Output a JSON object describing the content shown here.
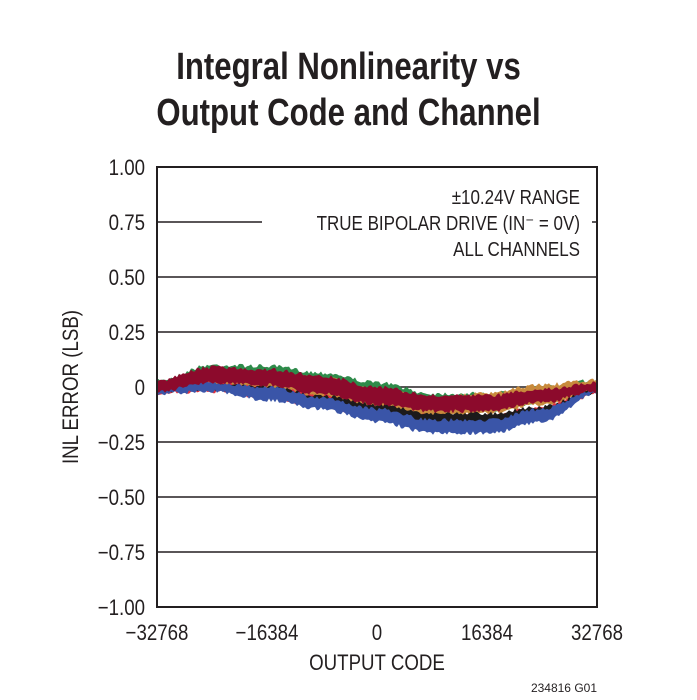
{
  "chart_data": {
    "type": "area",
    "title_line1": "Integral Nonlinearity vs",
    "title_line2": "Output Code and Channel",
    "xlabel": "OUTPUT CODE",
    "ylabel": "INL ERROR (LSB)",
    "xlim": [
      -32768,
      32768
    ],
    "ylim": [
      -1.0,
      1.0
    ],
    "xticks": [
      "−32768",
      "−16384",
      "0",
      "16384",
      "32768"
    ],
    "xtick_values": [
      -32768,
      -16384,
      0,
      16384,
      32768
    ],
    "yticks": [
      "1.00",
      "0.75",
      "0.50",
      "0.25",
      "0",
      "−0.25",
      "−0.50",
      "−0.75",
      "−1.00"
    ],
    "ytick_values": [
      1.0,
      0.75,
      0.5,
      0.25,
      0,
      -0.25,
      -0.5,
      -0.75,
      -1.0
    ],
    "grid": true,
    "annotations": [
      "±10.24V RANGE",
      "TRUE BIPOLAR DRIVE (IN⁻ = 0V)",
      "ALL CHANNELS"
    ],
    "figure_id": "234816 G01",
    "x": [
      -32768,
      -24576,
      -16384,
      -8192,
      0,
      8192,
      16384,
      24576,
      32768
    ],
    "series": [
      {
        "color": "#2e8b4a",
        "upper": [
          0.03,
          0.1,
          0.095,
          0.065,
          0.02,
          -0.03,
          -0.03,
          0.0,
          0.03
        ],
        "lower": [
          -0.02,
          0.02,
          0.01,
          -0.03,
          -0.08,
          -0.11,
          -0.11,
          -0.07,
          -0.02
        ]
      },
      {
        "color": "#c88a3c",
        "upper": [
          0.02,
          0.08,
          0.07,
          0.04,
          -0.01,
          -0.05,
          -0.03,
          0.01,
          0.03
        ],
        "lower": [
          -0.02,
          0.0,
          -0.01,
          -0.05,
          -0.1,
          -0.13,
          -0.12,
          -0.08,
          -0.02
        ]
      },
      {
        "color": "#e0303f",
        "upper": [
          0.0,
          0.02,
          0.0,
          -0.04,
          -0.09,
          -0.13,
          -0.13,
          -0.09,
          -0.01
        ],
        "lower": [
          -0.03,
          -0.02,
          -0.05,
          -0.09,
          -0.15,
          -0.19,
          -0.18,
          -0.14,
          -0.03
        ]
      },
      {
        "color": "#1c1a1b",
        "upper": [
          0.0,
          0.01,
          0.0,
          -0.04,
          -0.08,
          -0.12,
          -0.12,
          -0.09,
          -0.01
        ],
        "lower": [
          -0.02,
          -0.01,
          -0.04,
          -0.08,
          -0.13,
          -0.16,
          -0.16,
          -0.12,
          -0.03
        ]
      },
      {
        "color": "#3a55a8",
        "upper": [
          0.01,
          0.02,
          0.0,
          -0.05,
          -0.1,
          -0.15,
          -0.15,
          -0.1,
          -0.01
        ],
        "lower": [
          -0.03,
          -0.02,
          -0.06,
          -0.1,
          -0.16,
          -0.21,
          -0.21,
          -0.16,
          -0.03
        ]
      },
      {
        "color": "#8c0a2c",
        "upper": [
          0.03,
          0.09,
          0.08,
          0.05,
          0.0,
          -0.04,
          -0.04,
          -0.01,
          0.02
        ],
        "lower": [
          -0.02,
          0.02,
          0.01,
          -0.03,
          -0.08,
          -0.11,
          -0.11,
          -0.07,
          -0.02
        ]
      }
    ]
  }
}
